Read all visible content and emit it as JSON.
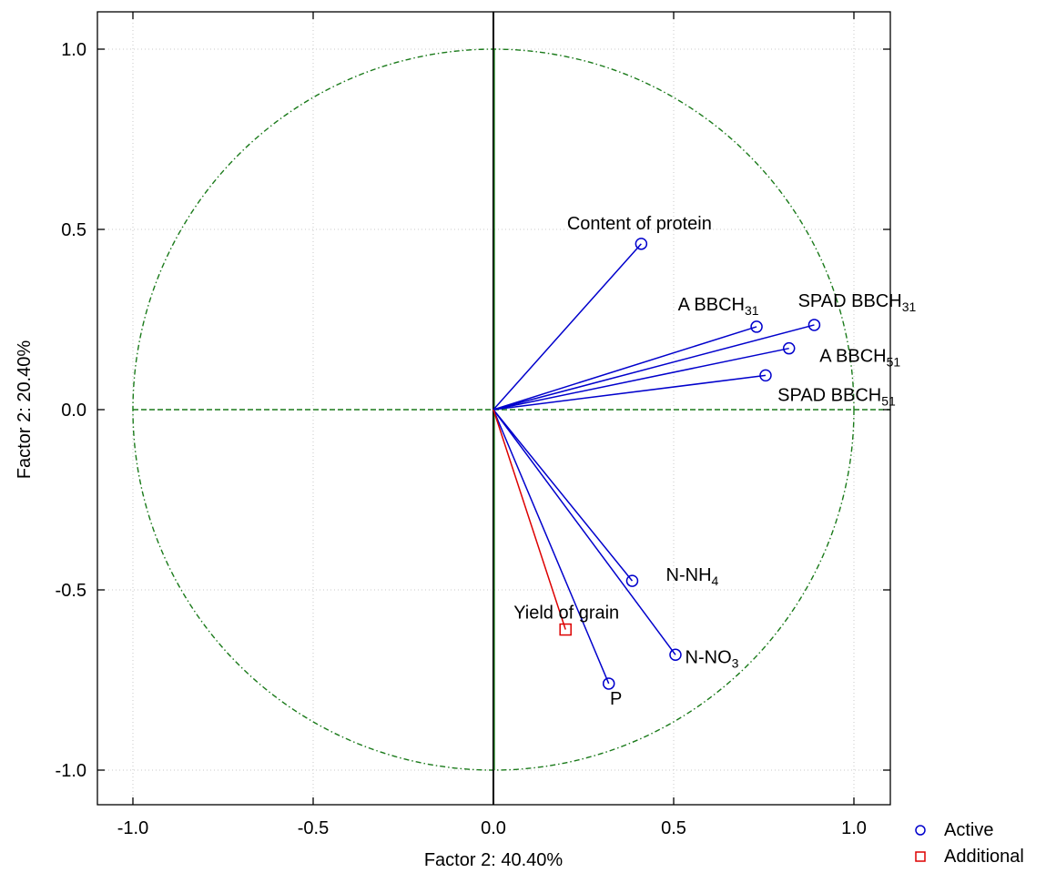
{
  "chart_data": {
    "type": "scatter",
    "subtype": "pca-variable-loadings-circle",
    "xlabel": "Factor 2: 40.40%",
    "ylabel": "Factor 2: 20.40%",
    "xlim": [
      -1.1,
      1.1
    ],
    "ylim": [
      -1.1,
      1.1
    ],
    "x_ticks": [
      -1.0,
      -0.5,
      0.0,
      0.5,
      1.0
    ],
    "y_ticks": [
      -1.0,
      -0.5,
      0.0,
      0.5,
      1.0
    ],
    "x_tick_labels": [
      "-1.0",
      "-0.5",
      "0.0",
      "0.5",
      "1.0"
    ],
    "y_tick_labels": [
      "-1.0",
      "-0.5",
      "0.0",
      "0.5",
      "1.0"
    ],
    "grid": true,
    "unit_circle": true,
    "legend_position": "bottom-right",
    "legend": [
      {
        "label": "Active",
        "marker": "circle",
        "color": "#0000cc"
      },
      {
        "label": "Additional",
        "marker": "square",
        "color": "#dd0000"
      }
    ],
    "colors": {
      "active": "#0000cc",
      "additional": "#dd0000",
      "circle": "#1a7a1a",
      "axis": "#000000",
      "grid": "#c8c8c8"
    },
    "series": [
      {
        "name": "Active",
        "points": [
          {
            "label": "Content of protein",
            "base": "Content of protein",
            "sub": "",
            "x": 0.41,
            "y": 0.46
          },
          {
            "label": "A BBCH31",
            "base": "A BBCH",
            "sub": "31",
            "x": 0.73,
            "y": 0.23
          },
          {
            "label": "SPAD BBCH31",
            "base": "SPAD  BBCH",
            "sub": "31",
            "x": 0.89,
            "y": 0.235
          },
          {
            "label": "A BBCH51",
            "base": "A BBCH",
            "sub": "51",
            "x": 0.82,
            "y": 0.17
          },
          {
            "label": "SPAD BBCH51",
            "base": "SPAD  BBCH",
            "sub": "51",
            "x": 0.755,
            "y": 0.095
          },
          {
            "label": "N-NH4",
            "base": "N-NH",
            "sub": "4",
            "x": 0.385,
            "y": -0.475
          },
          {
            "label": "N-NO3",
            "base": "N-NO",
            "sub": "3",
            "x": 0.505,
            "y": -0.68
          },
          {
            "label": "P",
            "base": "P",
            "sub": "",
            "x": 0.32,
            "y": -0.76
          }
        ]
      },
      {
        "name": "Additional",
        "points": [
          {
            "label": "Yield of grain",
            "base": "Yield of grain",
            "sub": "",
            "x": 0.2,
            "y": -0.61
          }
        ]
      }
    ]
  }
}
